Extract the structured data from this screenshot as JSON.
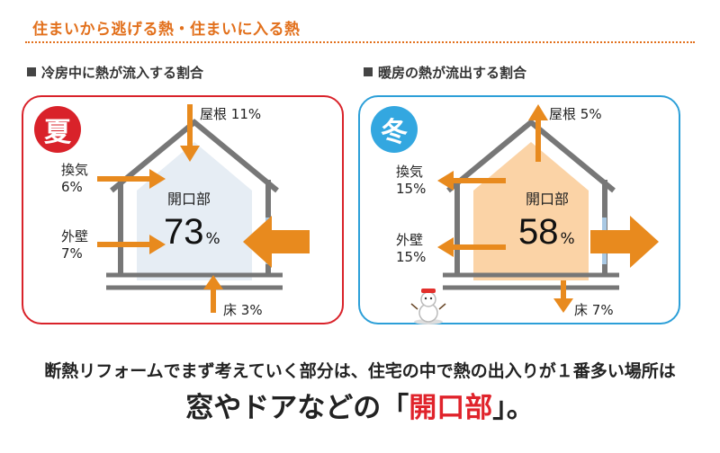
{
  "header": {
    "title": "住まいから逃げる熱・住まいに入る熱"
  },
  "summer": {
    "label": "冷房中に熱が流入する割合",
    "badge": "夏",
    "roof": "屋根",
    "roof_value": "11%",
    "ventilation": "換気",
    "ventilation_value": "6%",
    "wall": "外壁",
    "wall_value": "7%",
    "floor": "床",
    "floor_value": "3%",
    "opening_label": "開口部",
    "opening_value": "73",
    "opening_unit": "%"
  },
  "winter": {
    "label": "暖房の熱が流出する割合",
    "badge": "冬",
    "roof": "屋根",
    "roof_value": "5%",
    "ventilation": "換気",
    "ventilation_value": "15%",
    "wall": "外壁",
    "wall_value": "15%",
    "floor": "床",
    "floor_value": "7%",
    "opening_label": "開口部",
    "opening_value": "58",
    "opening_unit": "%"
  },
  "footer": {
    "line1": "断熱リフォームでまず考えていく部分は、住宅の中で熱の出入りが１番多い場所は",
    "line2_pre": "窓やドアなどの「",
    "line2_highlight": "開口部",
    "line2_post": "」。"
  },
  "colors": {
    "accent_orange": "#e2701c",
    "summer_red": "#d9222a",
    "winter_blue": "#2c9fd8",
    "arrow_orange": "#e88a1e",
    "summer_fill": "#e6edf4",
    "winter_fill": "#fbd3a6",
    "highlight_red": "#e0232b"
  }
}
